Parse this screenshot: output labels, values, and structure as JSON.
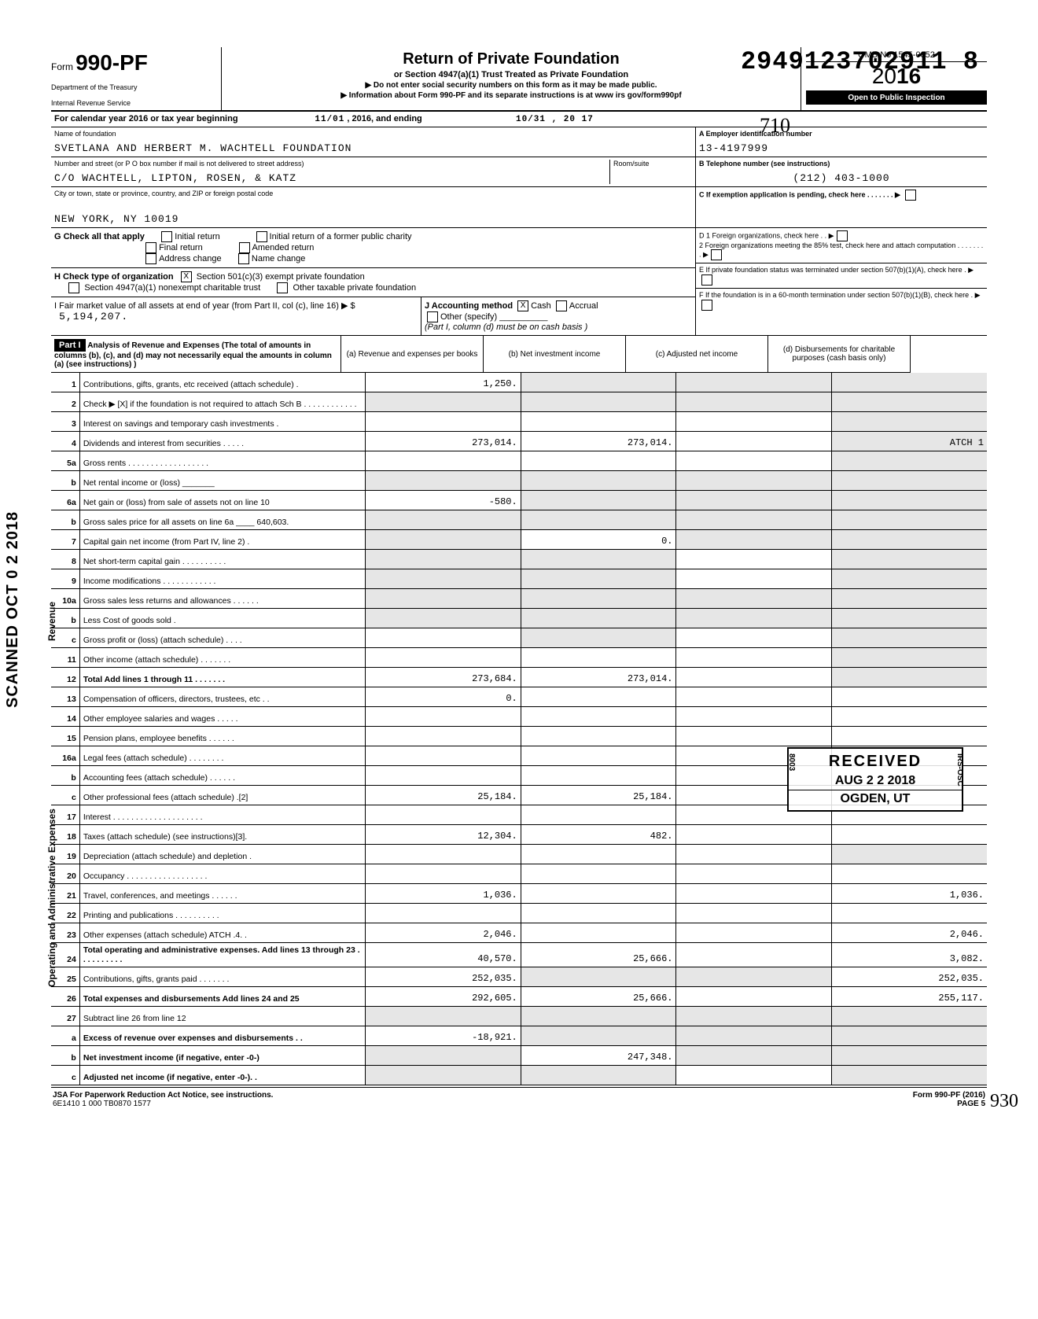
{
  "dln": "2949123702911  8",
  "scanned_stamp": "SCANNED OCT 0 2 2018",
  "hand_710": "710",
  "hand_930": "930",
  "header": {
    "form_prefix": "Form",
    "form_number": "990-PF",
    "dept": "Department of the Treasury",
    "irs": "Internal Revenue Service",
    "title": "Return of Private Foundation",
    "sub1": "or Section 4947(a)(1) Trust Treated as Private Foundation",
    "sub2": "▶ Do not enter social security numbers on this form as it may be made public.",
    "sub3": "▶ Information about Form 990-PF and its separate instructions is at www irs gov/form990pf",
    "omb": "OMB No  1545-0052",
    "year_prefix": "20",
    "year_bold": "16",
    "inspect": "Open to Public Inspection"
  },
  "cal": {
    "label": "For calendar year 2016 or tax year beginning",
    "begin": "11/01",
    "mid": ", 2016, and ending",
    "end": "10/31 , 20 17"
  },
  "id": {
    "name_label": "Name of foundation",
    "name": "SVETLANA AND HERBERT M. WACHTELL FOUNDATION",
    "addr_label": "Number and street (or P O  box number if mail is not delivered to street address)",
    "addr": "C/O WACHTELL, LIPTON, ROSEN, & KATZ",
    "room_label": "Room/suite",
    "city_label": "City or town, state or province, country, and ZIP or foreign postal code",
    "city": "NEW YORK, NY 10019",
    "a_label": "A  Employer identification number",
    "a_val": "13-4197999",
    "b_label": "B  Telephone number (see instructions)",
    "b_val": "(212) 403-1000",
    "c_label": "C  If exemption application is pending, check here . . . . . . . ▶",
    "d1": "D  1  Foreign organizations, check here . . ▶",
    "d2": "2  Foreign organizations meeting the 85% test, check here and attach computation  . . . . . . . . ▶",
    "e_label": "E  If private foundation status was terminated under section 507(b)(1)(A), check here . ▶",
    "f_label": "F  If the foundation is in a 60-month termination under section 507(b)(1)(B), check here . ▶"
  },
  "g": {
    "label": "G  Check all that apply",
    "opts": [
      "Initial return",
      "Final return",
      "Address change",
      "Initial return of a former public charity",
      "Amended return",
      "Name change"
    ]
  },
  "h": {
    "label": "H  Check type of organization",
    "opt1": "Section 501(c)(3) exempt private foundation",
    "opt1_checked": "X",
    "opt2": "Section 4947(a)(1) nonexempt charitable trust",
    "opt3": "Other taxable private foundation"
  },
  "i": {
    "label": "I  Fair market value of all assets at end of year (from Part II, col (c), line 16) ▶ $",
    "val": "5,194,207."
  },
  "j": {
    "label": "J Accounting method",
    "cash_checked": "X",
    "cash": "Cash",
    "accrual": "Accrual",
    "other": "Other (specify)",
    "note": "(Part I, column (d) must be on cash basis )"
  },
  "part1": {
    "black": "Part I",
    "title": "Analysis of Revenue and Expenses (The total of amounts in columns (b), (c), and (d) may not necessarily equal the amounts in column (a) (see instructions) )",
    "cols": {
      "a": "(a) Revenue and expenses per books",
      "b": "(b) Net investment income",
      "c": "(c) Adjusted net income",
      "d": "(d) Disbursements for charitable purposes (cash basis only)"
    }
  },
  "rows": [
    {
      "n": "1",
      "d": "",
      "a": "1,250.",
      "b": "",
      "c": "",
      "shade_b": true,
      "shade_c": true,
      "shade_d": true
    },
    {
      "n": "2",
      "d": "",
      "a": "",
      "b": "",
      "c": "",
      "shade_a": true,
      "shade_b": true,
      "shade_c": true,
      "shade_d": true
    },
    {
      "n": "3",
      "d": "",
      "a": "",
      "b": "",
      "c": "",
      "shade_d": true
    },
    {
      "n": "4",
      "d": "ATCH 1",
      "a": "273,014.",
      "b": "273,014.",
      "c": "",
      "shade_d": true
    },
    {
      "n": "5a",
      "d": "",
      "a": "",
      "b": "",
      "c": "",
      "shade_d": true
    },
    {
      "n": "b",
      "d": "",
      "a": "",
      "b": "",
      "c": "",
      "shade_a": true,
      "shade_b": true,
      "shade_c": true,
      "shade_d": true
    },
    {
      "n": "6a",
      "d": "",
      "a": "-580.",
      "b": "",
      "c": "",
      "shade_b": true,
      "shade_c": true,
      "shade_d": true
    },
    {
      "n": "b",
      "d": "",
      "a": "",
      "b": "",
      "c": "",
      "shade_a": true,
      "shade_b": true,
      "shade_c": true,
      "shade_d": true
    },
    {
      "n": "7",
      "d": "",
      "a": "",
      "b": "0.",
      "c": "",
      "shade_a": true,
      "shade_c": true,
      "shade_d": true
    },
    {
      "n": "8",
      "d": "",
      "a": "",
      "b": "",
      "c": "",
      "shade_a": true,
      "shade_b": true,
      "shade_d": true
    },
    {
      "n": "9",
      "d": "",
      "a": "",
      "b": "",
      "c": "",
      "shade_a": true,
      "shade_b": true,
      "shade_d": true
    },
    {
      "n": "10a",
      "d": "",
      "a": "",
      "b": "",
      "c": "",
      "shade_a": true,
      "shade_b": true,
      "shade_c": true,
      "shade_d": true
    },
    {
      "n": "b",
      "d": "",
      "a": "",
      "b": "",
      "c": "",
      "shade_a": true,
      "shade_b": true,
      "shade_c": true,
      "shade_d": true
    },
    {
      "n": "c",
      "d": "",
      "a": "",
      "b": "",
      "c": "",
      "shade_b": true,
      "shade_d": true
    },
    {
      "n": "11",
      "d": "",
      "a": "",
      "b": "",
      "c": "",
      "shade_d": true
    },
    {
      "n": "12",
      "d": "",
      "a": "273,684.",
      "b": "273,014.",
      "c": "",
      "shade_d": true,
      "bold": true
    },
    {
      "n": "13",
      "d": "",
      "a": "0.",
      "b": "",
      "c": ""
    },
    {
      "n": "14",
      "d": "",
      "a": "",
      "b": "",
      "c": ""
    },
    {
      "n": "15",
      "d": "",
      "a": "",
      "b": "",
      "c": ""
    },
    {
      "n": "16a",
      "d": "",
      "a": "",
      "b": "",
      "c": ""
    },
    {
      "n": "b",
      "d": "",
      "a": "",
      "b": "",
      "c": ""
    },
    {
      "n": "c",
      "d": "",
      "a": "25,184.",
      "b": "25,184.",
      "c": ""
    },
    {
      "n": "17",
      "d": "",
      "a": "",
      "b": "",
      "c": ""
    },
    {
      "n": "18",
      "d": "",
      "a": "12,304.",
      "b": "482.",
      "c": ""
    },
    {
      "n": "19",
      "d": "",
      "a": "",
      "b": "",
      "c": "",
      "shade_d": true
    },
    {
      "n": "20",
      "d": "",
      "a": "",
      "b": "",
      "c": ""
    },
    {
      "n": "21",
      "d": "1,036.",
      "a": "1,036.",
      "b": "",
      "c": ""
    },
    {
      "n": "22",
      "d": "",
      "a": "",
      "b": "",
      "c": ""
    },
    {
      "n": "23",
      "d": "2,046.",
      "a": "2,046.",
      "b": "",
      "c": ""
    },
    {
      "n": "24",
      "d": "3,082.",
      "a": "40,570.",
      "b": "25,666.",
      "c": "",
      "bold": true
    },
    {
      "n": "25",
      "d": "252,035.",
      "a": "252,035.",
      "b": "",
      "c": "",
      "shade_b": true,
      "shade_c": true
    },
    {
      "n": "26",
      "d": "255,117.",
      "a": "292,605.",
      "b": "25,666.",
      "c": "",
      "bold": true
    },
    {
      "n": "27",
      "d": "",
      "a": "",
      "b": "",
      "c": "",
      "shade_a": true,
      "shade_b": true,
      "shade_c": true,
      "shade_d": true
    },
    {
      "n": "a",
      "d": "",
      "a": "-18,921.",
      "b": "",
      "c": "",
      "shade_b": true,
      "shade_c": true,
      "shade_d": true,
      "bold": true
    },
    {
      "n": "b",
      "d": "",
      "a": "",
      "b": "247,348.",
      "c": "",
      "shade_a": true,
      "shade_c": true,
      "shade_d": true,
      "bold": true
    },
    {
      "n": "c",
      "d": "",
      "a": "",
      "b": "",
      "c": "",
      "shade_a": true,
      "shade_b": true,
      "shade_d": true,
      "bold": true
    }
  ],
  "stamp": {
    "received": "RECEIVED",
    "date": "AUG 2 2 2018",
    "loc": "OGDEN, UT",
    "side1": "8003",
    "side2": "IRS-OSC"
  },
  "footer": {
    "left1": "JSA  For Paperwork Reduction Act Notice, see instructions.",
    "left2": "6E1410 1 000   TB0870 1577",
    "right1": "Form 990-PF (2016)",
    "right2": "PAGE 5"
  }
}
